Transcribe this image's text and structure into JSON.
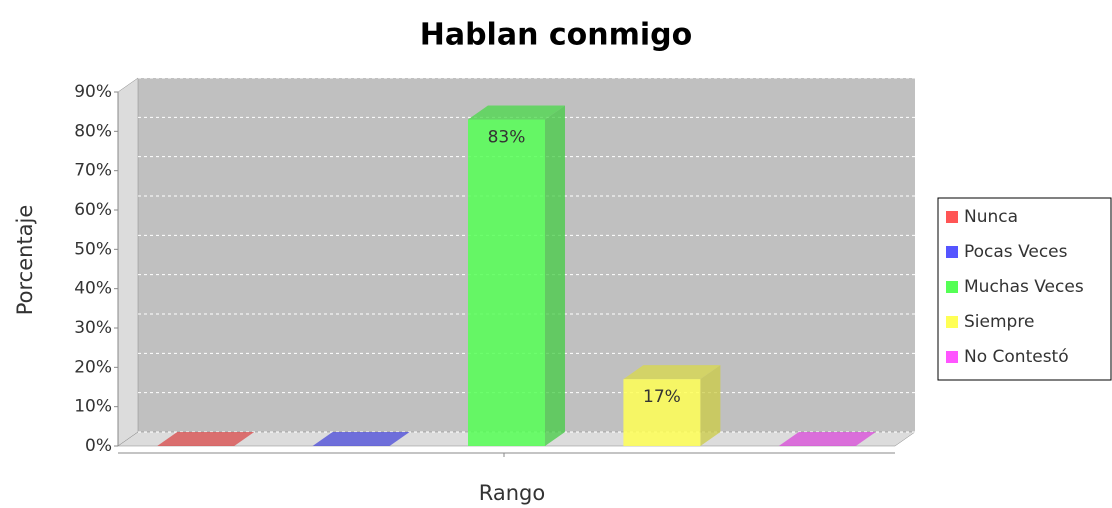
{
  "chart_data": {
    "type": "bar3d",
    "title": "Hablan conmigo",
    "x_label": "Rango",
    "y_label": "Porcentaje",
    "categories": [
      null
    ],
    "series": [
      {
        "name": "Nunca",
        "color": "#ff5555",
        "values": [
          0
        ]
      },
      {
        "name": "Pocas Veces",
        "color": "#5555ff",
        "values": [
          0
        ]
      },
      {
        "name": "Muchas Veces",
        "color": "#55ff55",
        "values": [
          83
        ],
        "value_labels": [
          "83%"
        ]
      },
      {
        "name": "Siempre",
        "color": "#ffff55",
        "values": [
          17
        ],
        "value_labels": [
          "17%"
        ]
      },
      {
        "name": "No Contestó",
        "color": "#ff55ff",
        "values": [
          0
        ]
      }
    ],
    "ylim": [
      0,
      90
    ],
    "yticks": [
      {
        "value": 0,
        "label": "0%"
      },
      {
        "value": 10,
        "label": "10%"
      },
      {
        "value": 20,
        "label": "20%"
      },
      {
        "value": 30,
        "label": "30%"
      },
      {
        "value": 40,
        "label": "40%"
      },
      {
        "value": 50,
        "label": "50%"
      },
      {
        "value": 60,
        "label": "60%"
      },
      {
        "value": 70,
        "label": "70%"
      },
      {
        "value": 80,
        "label": "80%"
      },
      {
        "value": 90,
        "label": "90%"
      }
    ],
    "grid": true,
    "legend": "right"
  }
}
